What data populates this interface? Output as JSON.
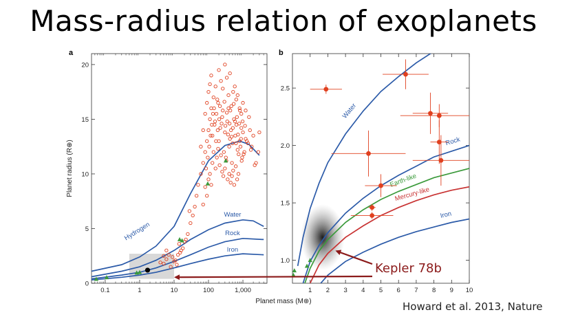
{
  "title": "Mass-radius relation of exoplanets",
  "citation": "Howard et al. 2013, Nature",
  "colors": {
    "curve": "#2b5aa8",
    "earthlike": "#3b9a3b",
    "mercury": "#c83232",
    "points": "#e0401f",
    "solar_system": "#3b9a3b",
    "arrow": "#8b1a1a",
    "box": "#c8c8c8"
  },
  "callout": {
    "label": "Kepler 78b"
  },
  "chart_data": [
    {
      "panel": "a",
      "type": "scatter",
      "xlabel": "Planet mass (M⊕)",
      "ylabel": "Planet radius (R⊕)",
      "xscale": "log",
      "xlim": [
        0.04,
        5000
      ],
      "ylim": [
        0,
        21
      ],
      "xticks": [
        0.1,
        1,
        10,
        100,
        1000
      ],
      "xticklabels": [
        "0.1",
        "1",
        "10",
        "100",
        "1,000"
      ],
      "yticks": [
        0,
        5,
        10,
        15,
        20
      ],
      "yticklabels": [
        "0",
        "5",
        "10",
        "15",
        "20"
      ],
      "curves": [
        {
          "name": "Hydrogen",
          "points": [
            [
              0.04,
              1.1
            ],
            [
              0.3,
              1.7
            ],
            [
              1,
              2.4
            ],
            [
              3,
              3.4
            ],
            [
              10,
              5.2
            ],
            [
              30,
              8.2
            ],
            [
              100,
              11.2
            ],
            [
              300,
              12.6
            ],
            [
              800,
              13.0
            ],
            [
              1500,
              12.7
            ],
            [
              3000,
              11.7
            ]
          ]
        },
        {
          "name": "Water",
          "points": [
            [
              0.04,
              0.6
            ],
            [
              0.3,
              1.1
            ],
            [
              1,
              1.5
            ],
            [
              3,
              2.1
            ],
            [
              10,
              3.0
            ],
            [
              30,
              4.0
            ],
            [
              100,
              4.9
            ],
            [
              300,
              5.5
            ],
            [
              1000,
              5.8
            ],
            [
              2000,
              5.7
            ],
            [
              4000,
              5.2
            ]
          ]
        },
        {
          "name": "Rock",
          "points": [
            [
              0.04,
              0.4
            ],
            [
              0.3,
              0.75
            ],
            [
              1,
              1.0
            ],
            [
              3,
              1.4
            ],
            [
              10,
              2.0
            ],
            [
              30,
              2.6
            ],
            [
              100,
              3.3
            ],
            [
              300,
              3.8
            ],
            [
              1000,
              4.1
            ],
            [
              4000,
              4.0
            ]
          ]
        },
        {
          "name": "Iron",
          "points": [
            [
              0.04,
              0.3
            ],
            [
              0.3,
              0.55
            ],
            [
              1,
              0.75
            ],
            [
              3,
              1.0
            ],
            [
              10,
              1.4
            ],
            [
              30,
              1.8
            ],
            [
              100,
              2.2
            ],
            [
              300,
              2.5
            ],
            [
              1000,
              2.7
            ],
            [
              4000,
              2.6
            ]
          ]
        }
      ],
      "exoplanets": [
        [
          8,
          1.5
        ],
        [
          10,
          2.0
        ],
        [
          15,
          2.8
        ],
        [
          20,
          3.8
        ],
        [
          25,
          4.5
        ],
        [
          30,
          5.5
        ],
        [
          12,
          1.7
        ],
        [
          18,
          3.2
        ],
        [
          35,
          6.2
        ],
        [
          40,
          7.0
        ],
        [
          22,
          4.0
        ],
        [
          9,
          2.4
        ],
        [
          14,
          3.6
        ],
        [
          28,
          6.6
        ],
        [
          45,
          8.0
        ],
        [
          50,
          9.0
        ],
        [
          60,
          10.0
        ],
        [
          70,
          11.0
        ],
        [
          80,
          12.0
        ],
        [
          90,
          13.0
        ],
        [
          100,
          14.0
        ],
        [
          110,
          15.0
        ],
        [
          120,
          16.0
        ],
        [
          130,
          13.5
        ],
        [
          150,
          14.5
        ],
        [
          170,
          15.5
        ],
        [
          190,
          16.5
        ],
        [
          200,
          13.0
        ],
        [
          220,
          14.2
        ],
        [
          250,
          15.2
        ],
        [
          280,
          12.0
        ],
        [
          300,
          13.8
        ],
        [
          320,
          11.5
        ],
        [
          350,
          14.8
        ],
        [
          380,
          16.0
        ],
        [
          400,
          12.5
        ],
        [
          420,
          13.2
        ],
        [
          450,
          14.0
        ],
        [
          480,
          11.0
        ],
        [
          500,
          12.8
        ],
        [
          550,
          15.0
        ],
        [
          600,
          13.5
        ],
        [
          650,
          14.5
        ],
        [
          700,
          12.2
        ],
        [
          750,
          11.8
        ],
        [
          800,
          13.0
        ],
        [
          850,
          12.5
        ],
        [
          900,
          14.2
        ],
        [
          950,
          11.5
        ],
        [
          1000,
          13.8
        ],
        [
          1100,
          12.0
        ],
        [
          1200,
          13.2
        ],
        [
          1400,
          12.8
        ],
        [
          1600,
          14.0
        ],
        [
          1800,
          12.5
        ],
        [
          2000,
          13.5
        ],
        [
          2400,
          11.0
        ],
        [
          2800,
          12.0
        ],
        [
          3000,
          13.8
        ],
        [
          60,
          12.5
        ],
        [
          70,
          14.0
        ],
        [
          80,
          15.5
        ],
        [
          90,
          16.5
        ],
        [
          100,
          17.5
        ],
        [
          110,
          18.2
        ],
        [
          120,
          19.0
        ],
        [
          140,
          17.0
        ],
        [
          160,
          18.0
        ],
        [
          180,
          16.8
        ],
        [
          200,
          19.5
        ],
        [
          230,
          18.5
        ],
        [
          260,
          17.8
        ],
        [
          300,
          20.0
        ],
        [
          340,
          18.8
        ],
        [
          380,
          17.2
        ],
        [
          420,
          19.2
        ],
        [
          460,
          16.2
        ],
        [
          520,
          17.5
        ],
        [
          580,
          18.0
        ],
        [
          640,
          16.8
        ],
        [
          700,
          17.2
        ],
        [
          800,
          16.0
        ],
        [
          900,
          15.5
        ],
        [
          1000,
          16.5
        ],
        [
          1200,
          15.8
        ],
        [
          1500,
          15.2
        ],
        [
          130,
          11.0
        ],
        [
          140,
          12.0
        ],
        [
          160,
          10.5
        ],
        [
          175,
          11.5
        ],
        [
          190,
          12.3
        ],
        [
          210,
          10.8
        ],
        [
          230,
          11.7
        ],
        [
          250,
          10.2
        ],
        [
          270,
          9.8
        ],
        [
          300,
          10.5
        ],
        [
          330,
          11.2
        ],
        [
          360,
          9.5
        ],
        [
          400,
          10.0
        ],
        [
          440,
          9.2
        ],
        [
          480,
          9.8
        ],
        [
          520,
          10.3
        ],
        [
          560,
          9.0
        ],
        [
          620,
          10.7
        ],
        [
          680,
          9.5
        ],
        [
          740,
          10.0
        ],
        [
          100,
          9.5
        ],
        [
          110,
          10.0
        ],
        [
          120,
          9.0
        ],
        [
          90,
          8.0
        ],
        [
          80,
          8.8
        ],
        [
          70,
          7.2
        ],
        [
          85,
          10.5
        ],
        [
          95,
          11.5
        ],
        [
          105,
          12.5
        ],
        [
          115,
          13.5
        ],
        [
          125,
          14.5
        ],
        [
          135,
          15.5
        ],
        [
          145,
          16.0
        ],
        [
          155,
          14.8
        ],
        [
          165,
          13.0
        ],
        [
          185,
          14.0
        ],
        [
          205,
          15.0
        ],
        [
          215,
          16.2
        ],
        [
          240,
          14.6
        ],
        [
          260,
          15.8
        ],
        [
          290,
          16.6
        ],
        [
          310,
          14.4
        ],
        [
          340,
          15.6
        ],
        [
          370,
          13.6
        ],
        [
          410,
          14.6
        ],
        [
          430,
          15.8
        ],
        [
          470,
          13.4
        ],
        [
          510,
          14.2
        ],
        [
          540,
          16.4
        ],
        [
          590,
          14.8
        ],
        [
          630,
          12.8
        ],
        [
          670,
          15.2
        ],
        [
          720,
          13.6
        ],
        [
          780,
          14.6
        ],
        [
          820,
          15.8
        ],
        [
          880,
          13.2
        ],
        [
          920,
          11.2
        ],
        [
          980,
          14.8
        ],
        [
          1050,
          11.8
        ],
        [
          1150,
          14.4
        ],
        [
          1300,
          13.0
        ],
        [
          1700,
          12.2
        ],
        [
          2200,
          10.8
        ],
        [
          5,
          1.8
        ],
        [
          6,
          2.2
        ],
        [
          7,
          2.6
        ],
        [
          5,
          2.5
        ],
        [
          6,
          3.0
        ],
        [
          4,
          1.9
        ],
        [
          11,
          2.1
        ],
        [
          13,
          2.6
        ],
        [
          16,
          3.0
        ]
      ],
      "solar_system": [
        [
          0.055,
          0.38
        ],
        [
          0.11,
          0.53
        ],
        [
          0.82,
          0.95
        ],
        [
          1,
          1
        ],
        [
          14.5,
          4.0
        ],
        [
          17.1,
          3.9
        ],
        [
          95,
          9.1
        ],
        [
          318,
          11.2
        ]
      ],
      "kepler78b": [
        1.7,
        1.2
      ],
      "highlight_box": {
        "xlim": [
          0.5,
          10
        ],
        "ylim": [
          0.4,
          2.7
        ]
      }
    },
    {
      "panel": "b",
      "type": "scatter",
      "xlabel": "",
      "ylabel": "",
      "xlim": [
        0,
        10
      ],
      "ylim": [
        0.8,
        2.8
      ],
      "xticks": [
        1,
        2,
        3,
        4,
        5,
        6,
        7,
        8,
        9,
        10
      ],
      "xticklabels": [
        "1",
        "2",
        "3",
        "4",
        "5",
        "6",
        "7",
        "8",
        "9",
        "10"
      ],
      "yticks": [
        1.0,
        1.5,
        2.0,
        2.5
      ],
      "yticklabels": [
        "1.0",
        "1.5",
        "2.0",
        "2.5"
      ],
      "curves": [
        {
          "name": "Water",
          "label": "Water",
          "points": [
            [
              0.3,
              0.95
            ],
            [
              0.6,
              1.2
            ],
            [
              1,
              1.45
            ],
            [
              1.5,
              1.67
            ],
            [
              2,
              1.85
            ],
            [
              3,
              2.1
            ],
            [
              4,
              2.3
            ],
            [
              5,
              2.47
            ],
            [
              6,
              2.6
            ],
            [
              7,
              2.72
            ],
            [
              8,
              2.82
            ]
          ]
        },
        {
          "name": "Rock",
          "label": "Rock",
          "points": [
            [
              0.6,
              0.8
            ],
            [
              1,
              0.99
            ],
            [
              1.5,
              1.13
            ],
            [
              2,
              1.24
            ],
            [
              3,
              1.41
            ],
            [
              4,
              1.54
            ],
            [
              5,
              1.65
            ],
            [
              6,
              1.74
            ],
            [
              7,
              1.82
            ],
            [
              8,
              1.9
            ],
            [
              9,
              1.95
            ],
            [
              10,
              2.0
            ]
          ]
        },
        {
          "name": "Earth-like",
          "label": "Earth-like",
          "points": [
            [
              0.7,
              0.8
            ],
            [
              1,
              0.93
            ],
            [
              1.5,
              1.08
            ],
            [
              2,
              1.18
            ],
            [
              3,
              1.33
            ],
            [
              4,
              1.44
            ],
            [
              5,
              1.53
            ],
            [
              6,
              1.6
            ],
            [
              7,
              1.66
            ],
            [
              8,
              1.72
            ],
            [
              9,
              1.76
            ],
            [
              10,
              1.8
            ]
          ]
        },
        {
          "name": "Mercury-like",
          "label": "Mercury-like",
          "points": [
            [
              1,
              0.8
            ],
            [
              1.5,
              0.96
            ],
            [
              2,
              1.06
            ],
            [
              3,
              1.2
            ],
            [
              4,
              1.3
            ],
            [
              5,
              1.39
            ],
            [
              6,
              1.46
            ],
            [
              7,
              1.52
            ],
            [
              8,
              1.57
            ],
            [
              9,
              1.61
            ],
            [
              10,
              1.64
            ]
          ]
        },
        {
          "name": "Iron",
          "label": "Iron",
          "points": [
            [
              1.6,
              0.8
            ],
            [
              2,
              0.87
            ],
            [
              3,
              0.99
            ],
            [
              4,
              1.07
            ],
            [
              5,
              1.14
            ],
            [
              6,
              1.2
            ],
            [
              7,
              1.25
            ],
            [
              8,
              1.29
            ],
            [
              9,
              1.33
            ],
            [
              10,
              1.36
            ]
          ]
        }
      ],
      "exoplanets_with_errors": [
        {
          "x": 1.9,
          "y": 2.49,
          "xerr": 0.9,
          "yerr": 0.04
        },
        {
          "x": 6.4,
          "y": 2.62,
          "xerr": 1.3,
          "yerr": 0.13
        },
        {
          "x": 7.8,
          "y": 2.28,
          "xerr": 1.0,
          "yerr": 0.18
        },
        {
          "x": 8.3,
          "y": 2.26,
          "xerr": 2.2,
          "yerr": 0.1
        },
        {
          "x": 8.3,
          "y": 2.03,
          "xerr": 0.5,
          "yerr": 0.19
        },
        {
          "x": 8.4,
          "y": 1.87,
          "xerr": 1.6,
          "yerr": 0.22
        },
        {
          "x": 4.3,
          "y": 1.93,
          "xerr": 2.1,
          "yerr": 0.2
        },
        {
          "x": 5.0,
          "y": 1.65,
          "xerr": 0.9,
          "yerr": 0.1
        },
        {
          "x": 4.5,
          "y": 1.46,
          "xerr": 0.2,
          "yerr": 0.03
        },
        {
          "x": 4.5,
          "y": 1.39,
          "xerr": 1.2,
          "yerr": 0.03
        }
      ],
      "solar_system": [
        [
          0.055,
          0.87
        ],
        [
          0.11,
          0.91
        ],
        [
          0.82,
          0.95
        ],
        [
          1,
          1
        ]
      ],
      "kepler78b": [
        1.7,
        1.2
      ]
    }
  ]
}
